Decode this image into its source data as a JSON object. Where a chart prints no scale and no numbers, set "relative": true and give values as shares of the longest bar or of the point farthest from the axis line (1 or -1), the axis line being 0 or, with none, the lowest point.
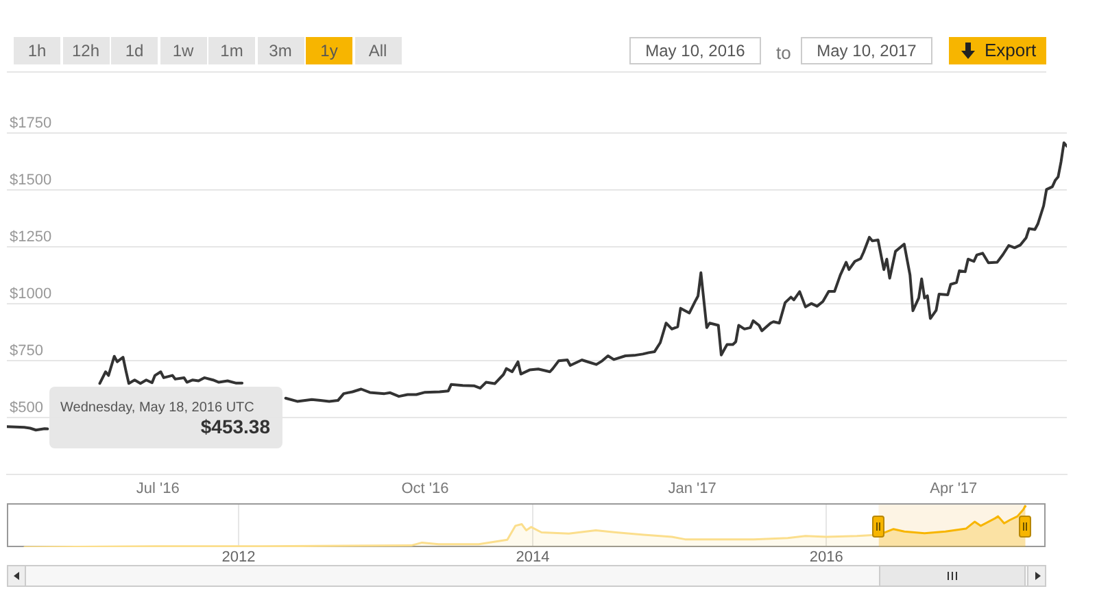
{
  "chart_data": [
    {
      "type": "line",
      "x": [
        "2016-05-10",
        "2016-05-16",
        "2016-05-18",
        "2016-05-20",
        "2016-05-23",
        "2016-05-24",
        "2016-06-02",
        "2016-06-11",
        "2016-06-13",
        "2016-06-14",
        "2016-06-16",
        "2016-06-17",
        "2016-06-19",
        "2016-06-20",
        "2016-06-21",
        "2016-06-23",
        "2016-06-25",
        "2016-06-27",
        "2016-06-29",
        "2016-06-30",
        "2016-07-02",
        "2016-07-03",
        "2016-07-06",
        "2016-07-07",
        "2016-07-10",
        "2016-07-11",
        "2016-07-13",
        "2016-07-15",
        "2016-07-17",
        "2016-07-20",
        "2016-07-22",
        "2016-07-25",
        "2016-07-28",
        "2016-07-30",
        "2016-08-04",
        "2016-08-14",
        "2016-08-18",
        "2016-08-23",
        "2016-08-26",
        "2016-08-29",
        "2016-09-01",
        "2016-09-03",
        "2016-09-06",
        "2016-09-09",
        "2016-09-12",
        "2016-09-17",
        "2016-09-19",
        "2016-09-22",
        "2016-09-25",
        "2016-09-28",
        "2016-10-01",
        "2016-10-06",
        "2016-10-09",
        "2016-10-10",
        "2016-10-14",
        "2016-10-18",
        "2016-10-20",
        "2016-10-22",
        "2016-10-25",
        "2016-10-28",
        "2016-10-29",
        "2016-10-31",
        "2016-11-02",
        "2016-11-03",
        "2016-11-06",
        "2016-11-09",
        "2016-11-13",
        "2016-11-14",
        "2016-11-16",
        "2016-11-19",
        "2016-11-20",
        "2016-11-24",
        "2016-11-27",
        "2016-11-29",
        "2016-12-01",
        "2016-12-03",
        "2016-12-05",
        "2016-12-09",
        "2016-12-12",
        "2016-12-15",
        "2016-12-17",
        "2016-12-19",
        "2016-12-21",
        "2016-12-23",
        "2016-12-25",
        "2016-12-27",
        "2016-12-28",
        "2016-12-31",
        "2017-01-02",
        "2017-01-03",
        "2017-01-04",
        "2017-01-06",
        "2017-01-07",
        "2017-01-10",
        "2017-01-11",
        "2017-01-13",
        "2017-01-15",
        "2017-01-16",
        "2017-01-17",
        "2017-01-19",
        "2017-01-21",
        "2017-01-22",
        "2017-01-24",
        "2017-01-25",
        "2017-01-28",
        "2017-01-29",
        "2017-01-31",
        "2017-02-02",
        "2017-02-04",
        "2017-02-05",
        "2017-02-07",
        "2017-02-09",
        "2017-02-11",
        "2017-02-13",
        "2017-02-15",
        "2017-02-17",
        "2017-02-19",
        "2017-02-21",
        "2017-02-23",
        "2017-02-24",
        "2017-02-26",
        "2017-02-28",
        "2017-03-01",
        "2017-03-03",
        "2017-03-04",
        "2017-03-06",
        "2017-03-08",
        "2017-03-09",
        "2017-03-10",
        "2017-03-12",
        "2017-03-15",
        "2017-03-17",
        "2017-03-18",
        "2017-03-20",
        "2017-03-21",
        "2017-03-22",
        "2017-03-23",
        "2017-03-24",
        "2017-03-26",
        "2017-03-27",
        "2017-03-30",
        "2017-03-31",
        "2017-04-02",
        "2017-04-03",
        "2017-04-05",
        "2017-04-06",
        "2017-04-08",
        "2017-04-09",
        "2017-04-11",
        "2017-04-13",
        "2017-04-16",
        "2017-04-18",
        "2017-04-20",
        "2017-04-22",
        "2017-04-24",
        "2017-04-26",
        "2017-04-27",
        "2017-04-29",
        "2017-04-30",
        "2017-05-02",
        "2017-05-03",
        "2017-05-05",
        "2017-05-06",
        "2017-05-07",
        "2017-05-08",
        "2017-05-09",
        "2017-05-10"
      ],
      "values": [
        460,
        457,
        453.38,
        445,
        451,
        450,
        null,
        650,
        701,
        685,
        769,
        745,
        765,
        705,
        650,
        665,
        650,
        665,
        653,
        685,
        701,
        675,
        685,
        669,
        675,
        655,
        665,
        661,
        675,
        665,
        655,
        661,
        651,
        651,
        null,
        585,
        571,
        579,
        575,
        571,
        575,
        605,
        613,
        625,
        610,
        605,
        609,
        593,
        601,
        601,
        611,
        613,
        617,
        645,
        641,
        639,
        629,
        655,
        649,
        689,
        715,
        701,
        745,
        691,
        709,
        713,
        701,
        715,
        749,
        753,
        729,
        753,
        741,
        733,
        749,
        771,
        755,
        771,
        773,
        779,
        785,
        789,
        829,
        915,
        889,
        899,
        980,
        959,
        1010,
        1034,
        1136,
        895,
        915,
        905,
        775,
        821,
        821,
        833,
        905,
        889,
        895,
        925,
        905,
        881,
        915,
        921,
        915,
        1005,
        1029,
        1017,
        1053,
        986,
        1001,
        989,
        1010,
        1054,
        1054,
        1126,
        1182,
        1150,
        1186,
        1198,
        1226,
        1292,
        1276,
        1280,
        1150,
        1196,
        1112,
        1230,
        1262,
        1126,
        969,
        1025,
        1109,
        1025,
        1035,
        935,
        971,
        1042,
        1039,
        1085,
        1093,
        1145,
        1141,
        1196,
        1186,
        1214,
        1222,
        1180,
        1182,
        1216,
        1256,
        1246,
        1258,
        1290,
        1330,
        1326,
        1350,
        1430,
        1502,
        1514,
        1542,
        1557,
        1623,
        1707,
        1692
      ],
      "color": "#333333",
      "xlim": [
        "2016-05-10",
        "2017-05-10"
      ],
      "xticks": [
        {
          "value": "2016-07-01",
          "label": "Jul '16"
        },
        {
          "value": "2016-10-01",
          "label": "Oct '16"
        },
        {
          "value": "2017-01-01",
          "label": "Jan '17"
        },
        {
          "value": "2017-04-01",
          "label": "Apr '17"
        }
      ],
      "ylim": [
        250,
        1750
      ],
      "yticks": [
        {
          "value": 500,
          "label": "$500"
        },
        {
          "value": 750,
          "label": "$750"
        },
        {
          "value": 1000,
          "label": "$1000"
        },
        {
          "value": 1250,
          "label": "$1250"
        },
        {
          "value": 1500,
          "label": "$1500"
        },
        {
          "value": 1750,
          "label": "$1750"
        }
      ],
      "grid": "y",
      "legend": false,
      "annotations": [
        "1h",
        "12h",
        "1d",
        "1w",
        "1m",
        "3m",
        "1y",
        "All",
        "May 10, 2016",
        "to",
        "May 10, 2017",
        "Export",
        "Wednesday, May 18, 2016 UTC",
        "$453.38"
      ]
    },
    {
      "type": "area",
      "relative": true,
      "x": [
        "2010-07-18",
        "2011-06-10",
        "2012-03-01",
        "2013-03-05",
        "2013-04-01",
        "2013-05-12",
        "2013-08-20",
        "2013-10-30",
        "2013-11-19",
        "2013-12-05",
        "2013-12-16",
        "2013-12-28",
        "2014-01-23",
        "2014-04-01",
        "2014-06-07",
        "2014-07-27",
        "2014-10-04",
        "2014-12-13",
        "2015-01-15",
        "2015-07-05",
        "2015-09-27",
        "2015-11-10",
        "2016-01-01",
        "2016-03-17",
        "2016-05-10",
        "2016-06-16",
        "2016-07-13",
        "2016-09-01",
        "2016-10-23",
        "2016-12-13",
        "2017-01-04",
        "2017-01-19",
        "2017-02-23",
        "2017-03-03",
        "2017-03-18",
        "2017-04-01",
        "2017-04-20",
        "2017-05-05",
        "2017-05-09",
        "2017-05-10"
      ],
      "values": [
        0,
        0.02,
        0.02,
        0.04,
        0.11,
        0.07,
        0.07,
        0.18,
        0.52,
        0.56,
        0.41,
        0.49,
        0.36,
        0.33,
        0.41,
        0.36,
        0.3,
        0.25,
        0.19,
        0.19,
        0.22,
        0.27,
        0.25,
        0.27,
        0.3,
        0.44,
        0.38,
        0.34,
        0.38,
        0.45,
        0.62,
        0.52,
        0.7,
        0.75,
        0.58,
        0.66,
        0.75,
        0.92,
        1,
        0.99
      ],
      "color": "#f7b500",
      "xlim": [
        "2010-06-04",
        "2017-06-29"
      ],
      "xticks": [
        {
          "value": "2012-01-01",
          "label": "2012"
        },
        {
          "value": "2014-01-01",
          "label": "2014"
        },
        {
          "value": "2016-01-01",
          "label": "2016"
        }
      ],
      "grid": "x",
      "legend": false,
      "tick_labels": "x",
      "bands": [
        {
          "axis": "x",
          "from": "2016-05-10",
          "to": "2017-05-10",
          "color": "#fdf4e4"
        }
      ]
    }
  ]
}
